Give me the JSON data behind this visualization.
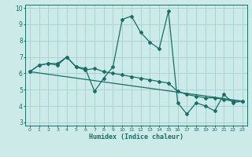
{
  "xlabel": "Humidex (Indice chaleur)",
  "bg_color": "#cceae8",
  "grid_color": "#aad4d0",
  "line_color": "#1a6e68",
  "xlim": [
    -0.5,
    23.5
  ],
  "ylim": [
    2.8,
    10.2
  ],
  "xticks": [
    0,
    1,
    2,
    3,
    4,
    5,
    6,
    7,
    8,
    9,
    10,
    11,
    12,
    13,
    14,
    15,
    16,
    17,
    18,
    19,
    20,
    21,
    22,
    23
  ],
  "yticks": [
    3,
    4,
    5,
    6,
    7,
    8,
    9,
    10
  ],
  "series1_x": [
    0,
    1,
    2,
    3,
    4,
    5,
    6,
    7,
    8,
    9,
    10,
    11,
    12,
    13,
    14,
    15,
    16,
    17,
    18,
    19,
    20,
    21,
    22,
    23
  ],
  "series1_y": [
    6.1,
    6.5,
    6.6,
    6.6,
    7.0,
    6.4,
    6.3,
    4.9,
    5.7,
    6.4,
    9.3,
    9.5,
    8.5,
    7.9,
    7.5,
    9.8,
    4.2,
    3.5,
    4.2,
    4.0,
    3.7,
    4.7,
    4.2,
    4.3
  ],
  "series2_x": [
    0,
    1,
    2,
    3,
    4,
    5,
    6,
    7,
    8,
    9,
    10,
    11,
    12,
    13,
    14,
    15,
    16,
    17,
    18,
    19,
    20,
    21,
    22,
    23
  ],
  "series2_y": [
    6.1,
    6.5,
    6.6,
    6.5,
    7.0,
    6.4,
    6.2,
    6.3,
    6.1,
    6.0,
    5.9,
    5.8,
    5.7,
    5.6,
    5.5,
    5.4,
    4.9,
    4.7,
    4.6,
    4.5,
    4.5,
    4.4,
    4.3,
    4.3
  ],
  "series3_x": [
    0,
    23
  ],
  "series3_y": [
    6.1,
    4.3
  ]
}
